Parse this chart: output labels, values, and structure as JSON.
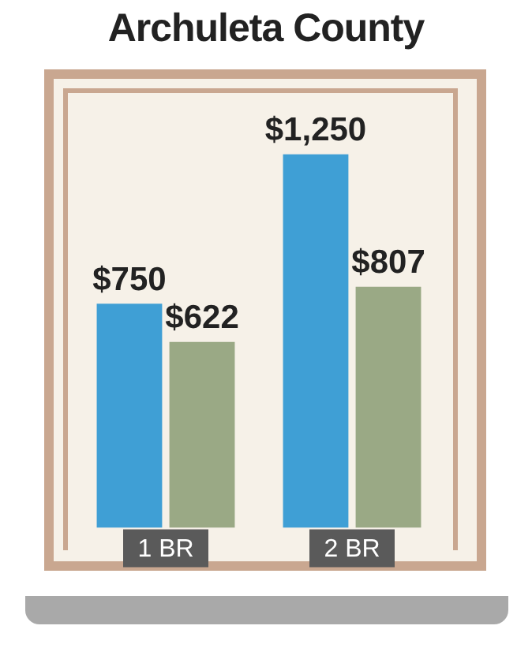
{
  "chart_data": {
    "type": "bar",
    "title": "Archuleta County",
    "categories": [
      "1 BR",
      "2 BR"
    ],
    "series": [
      {
        "color": "#3f9fd5",
        "values": [
          750,
          1250
        ],
        "value_labels": [
          "$750",
          "$1,250"
        ]
      },
      {
        "color": "#9aa985",
        "values": [
          622,
          807
        ],
        "value_labels": [
          "$622",
          "$807"
        ]
      }
    ],
    "grid": false,
    "legend": false
  }
}
